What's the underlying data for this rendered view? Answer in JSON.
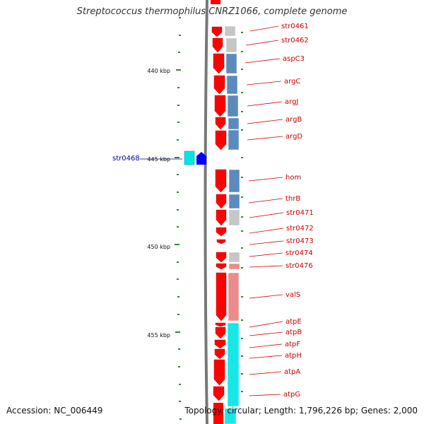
{
  "title": "Streptococcus thermophilus CNRZ1066, complete genome",
  "accession_text": "Accession: NC_006449",
  "topology_text": "Topology: circular; Length: 1,796,226 bp; Genes: 2,000",
  "colors": {
    "forward_strand": "#ff0000",
    "reverse_strand": "#0000ff",
    "label_red": "#cc0000",
    "label_blue": "#000099",
    "tick": "#2e8b2e",
    "backbone": "#777777",
    "cog_grey": "#c0c0c0",
    "cog_blue": "#4a7fb5",
    "cog_pink": "#e88080",
    "cog_cyan": "#00e5e5"
  },
  "ruler_labels": [
    {
      "text": "440 kbp"
    },
    {
      "text": "445 kbp"
    },
    {
      "text": "450 kbp"
    },
    {
      "text": "455 kbp"
    }
  ],
  "genes": [
    {
      "name": "str0461"
    },
    {
      "name": "str0462"
    },
    {
      "name": "aspC3"
    },
    {
      "name": "argC"
    },
    {
      "name": "argJ"
    },
    {
      "name": "argB"
    },
    {
      "name": "argD"
    },
    {
      "name": "hom"
    },
    {
      "name": "thrB"
    },
    {
      "name": "str0471"
    },
    {
      "name": "str0472"
    },
    {
      "name": "str0473"
    },
    {
      "name": "str0474"
    },
    {
      "name": "str0476"
    },
    {
      "name": "valS"
    },
    {
      "name": "atpE"
    },
    {
      "name": "atpB"
    },
    {
      "name": "atpF"
    },
    {
      "name": "atpH"
    },
    {
      "name": "atpA"
    },
    {
      "name": "atpG"
    }
  ],
  "reverse_gene": {
    "name": "str0468"
  }
}
